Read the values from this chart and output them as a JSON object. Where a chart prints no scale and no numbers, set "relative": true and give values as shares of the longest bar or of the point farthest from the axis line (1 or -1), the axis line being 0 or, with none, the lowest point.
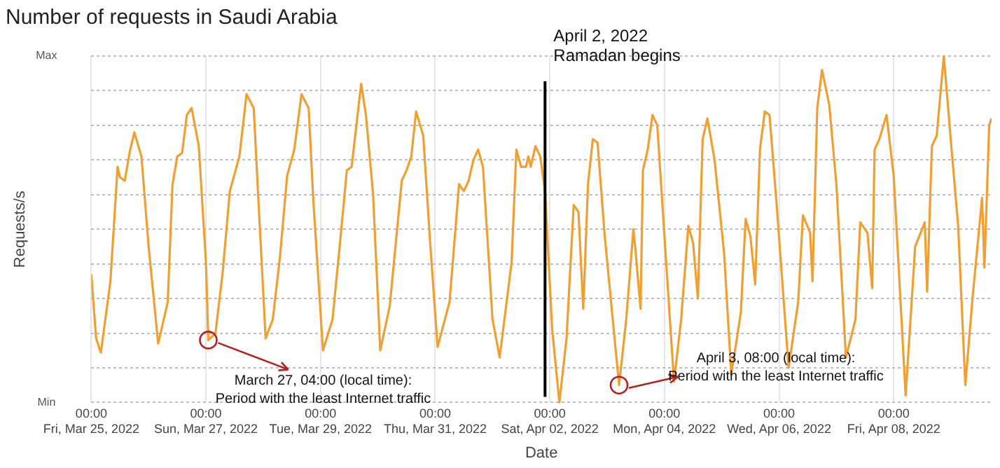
{
  "chart_data": {
    "type": "line",
    "title": "Number of requests in Saudi Arabia",
    "xlabel": "Date",
    "ylabel": "Requests/s",
    "relative": true,
    "color": "#f0a030",
    "grid": true,
    "legend": false,
    "marker": "none",
    "line_style": "solid",
    "x": [
      "2022-03-25T00:00",
      "2022-03-25T02:00",
      "2022-03-25T04:00",
      "2022-03-25T08:00",
      "2022-03-25T11:00",
      "2022-03-25T12:00",
      "2022-03-25T14:00",
      "2022-03-25T16:00",
      "2022-03-25T18:00",
      "2022-03-25T21:00",
      "2022-03-26T00:00",
      "2022-03-26T04:00",
      "2022-03-26T08:00",
      "2022-03-26T10:00",
      "2022-03-26T12:00",
      "2022-03-26T14:00",
      "2022-03-26T16:00",
      "2022-03-26T18:00",
      "2022-03-26T21:00",
      "2022-03-27T00:00",
      "2022-03-27T01:00",
      "2022-03-27T04:00",
      "2022-03-27T07:00",
      "2022-03-27T10:00",
      "2022-03-27T14:00",
      "2022-03-27T17:00",
      "2022-03-27T20:00",
      "2022-03-27T22:00",
      "2022-03-28T01:00",
      "2022-03-28T04:00",
      "2022-03-28T07:00",
      "2022-03-28T10:00",
      "2022-03-28T13:00",
      "2022-03-28T16:00",
      "2022-03-28T19:00",
      "2022-03-28T21:00",
      "2022-03-29T01:00",
      "2022-03-29T05:00",
      "2022-03-29T08:00",
      "2022-03-29T11:00",
      "2022-03-29T13:00",
      "2022-03-29T17:00",
      "2022-03-29T19:00",
      "2022-03-29T22:00",
      "2022-03-30T01:00",
      "2022-03-30T05:00",
      "2022-03-30T10:00",
      "2022-03-30T12:00",
      "2022-03-30T14:00",
      "2022-03-30T16:00",
      "2022-03-30T19:00",
      "2022-03-30T22:00",
      "2022-03-31T01:00",
      "2022-03-31T06:00",
      "2022-03-31T10:00",
      "2022-03-31T12:00",
      "2022-03-31T14:00",
      "2022-03-31T16:00",
      "2022-03-31T18:00",
      "2022-03-31T20:00",
      "2022-04-01T00:00",
      "2022-04-01T03:00",
      "2022-04-01T08:00",
      "2022-04-01T10:00",
      "2022-04-01T12:00",
      "2022-04-01T14:00",
      "2022-04-01T15:00",
      "2022-04-01T16:00",
      "2022-04-01T18:00",
      "2022-04-01T20:00",
      "2022-04-01T22:00",
      "2022-04-02T01:00",
      "2022-04-02T04:00",
      "2022-04-02T07:00",
      "2022-04-02T10:00",
      "2022-04-02T12:00",
      "2022-04-02T14:00",
      "2022-04-02T16:00",
      "2022-04-02T18:00",
      "2022-04-02T20:00",
      "2022-04-02T23:00",
      "2022-04-03T05:00",
      "2022-04-03T08:00",
      "2022-04-03T11:00",
      "2022-04-03T12:00",
      "2022-04-03T14:00",
      "2022-04-03T15:00",
      "2022-04-03T17:00",
      "2022-04-03T19:00",
      "2022-04-03T21:00",
      "2022-04-04T00:00",
      "2022-04-04T04:00",
      "2022-04-04T07:00",
      "2022-04-04T10:00",
      "2022-04-04T12:00",
      "2022-04-04T14:00",
      "2022-04-04T16:00",
      "2022-04-04T18:00",
      "2022-04-04T21:00",
      "2022-04-05T01:00",
      "2022-04-05T04:00",
      "2022-04-05T08:00",
      "2022-04-05T10:00",
      "2022-04-05T12:00",
      "2022-04-05T14:00",
      "2022-04-05T16:00",
      "2022-04-05T18:00",
      "2022-04-05T20:00",
      "2022-04-05T23:00",
      "2022-04-06T04:00",
      "2022-04-06T08:00",
      "2022-04-06T10:00",
      "2022-04-06T13:00",
      "2022-04-06T14:00",
      "2022-04-06T16:00",
      "2022-04-06T18:00",
      "2022-04-06T21:00",
      "2022-04-07T00:00",
      "2022-04-07T04:00",
      "2022-04-07T08:00",
      "2022-04-07T10:00",
      "2022-04-07T13:00",
      "2022-04-07T15:00",
      "2022-04-07T16:00",
      "2022-04-07T18:00",
      "2022-04-07T21:00",
      "2022-04-08T00:00",
      "2022-04-08T05:00",
      "2022-04-08T09:00",
      "2022-04-08T13:00",
      "2022-04-08T14:00",
      "2022-04-08T16:00",
      "2022-04-08T18:00",
      "2022-04-08T21:00",
      "2022-04-09T00:00",
      "2022-04-09T03:00",
      "2022-04-09T06:00",
      "2022-04-09T09:00",
      "2022-04-09T13:00",
      "2022-04-09T14:00",
      "2022-04-09T16:00",
      "2022-04-09T17:00"
    ],
    "values": [
      0.37,
      0.185,
      0.144,
      0.35,
      0.68,
      0.65,
      0.64,
      0.72,
      0.78,
      0.71,
      0.45,
      0.17,
      0.29,
      0.63,
      0.71,
      0.72,
      0.83,
      0.85,
      0.74,
      0.405,
      0.18,
      0.2,
      0.375,
      0.61,
      0.71,
      0.89,
      0.85,
      0.58,
      0.185,
      0.24,
      0.42,
      0.655,
      0.73,
      0.89,
      0.85,
      0.58,
      0.15,
      0.24,
      0.45,
      0.67,
      0.68,
      0.92,
      0.83,
      0.6,
      0.15,
      0.28,
      0.64,
      0.67,
      0.71,
      0.84,
      0.77,
      0.45,
      0.16,
      0.29,
      0.63,
      0.61,
      0.64,
      0.7,
      0.73,
      0.68,
      0.24,
      0.13,
      0.405,
      0.73,
      0.68,
      0.68,
      0.71,
      0.68,
      0.74,
      0.71,
      0.61,
      0.21,
      0,
      0.185,
      0.57,
      0.55,
      0.27,
      0.63,
      0.76,
      0.75,
      0.48,
      0.05,
      0.24,
      0.5,
      0.43,
      0.27,
      0.67,
      0.73,
      0.83,
      0.8,
      0.48,
      0.06,
      0.24,
      0.51,
      0.46,
      0.3,
      0.76,
      0.82,
      0.7,
      0.43,
      0.08,
      0.26,
      0.53,
      0.48,
      0.34,
      0.73,
      0.84,
      0.83,
      0.57,
      0.1,
      0.29,
      0.54,
      0.49,
      0.35,
      0.85,
      0.96,
      0.86,
      0.63,
      0.13,
      0.24,
      0.52,
      0.49,
      0.33,
      0.73,
      0.76,
      0.83,
      0.655,
      0.02,
      0.45,
      0.52,
      0.32,
      0.74,
      0.77,
      1,
      0.75,
      0.51,
      0.05,
      0.3,
      0.59,
      0.39,
      0.8,
      0.82
    ],
    "xlim": [
      "2022-03-25T00:00",
      "2022-04-09T17:00"
    ],
    "xticks": [
      {
        "value": "2022-03-25",
        "label": "00:00\nFri, Mar 25, 2022"
      },
      {
        "value": "2022-03-27",
        "label": "00:00\nSun, Mar 27, 2022"
      },
      {
        "value": "2022-03-29",
        "label": "00:00\nTue, Mar 29, 2022"
      },
      {
        "value": "2022-03-31",
        "label": "00:00\nThu, Mar 31, 2022"
      },
      {
        "value": "2022-04-02",
        "label": "00:00\nSat, Apr 02, 2022"
      },
      {
        "value": "2022-04-04",
        "label": "00:00\nMon, Apr 04, 2022"
      },
      {
        "value": "2022-04-06",
        "label": "00:00\nWed, Apr 06, 2022"
      },
      {
        "value": "2022-04-08",
        "label": "00:00\nFri, Apr 08, 2022"
      }
    ],
    "ref_lines": [
      {
        "axis": "x",
        "value": "2022-04-01T22:00",
        "label": "April 2, 2022\nRamadan begins",
        "color": "#000000"
      }
    ],
    "annotations": [
      "Max",
      "Min",
      {
        "text": "March 27, 04:00 (local time):\nPeriod with the least Internet traffic",
        "x": "2022-03-27T01:00",
        "y": 0.18
      },
      {
        "text": "April 3, 08:00 (local time):\nPeriod with the least Internet traffic",
        "x": "2022-04-03T05:00",
        "y": 0.05
      }
    ]
  }
}
